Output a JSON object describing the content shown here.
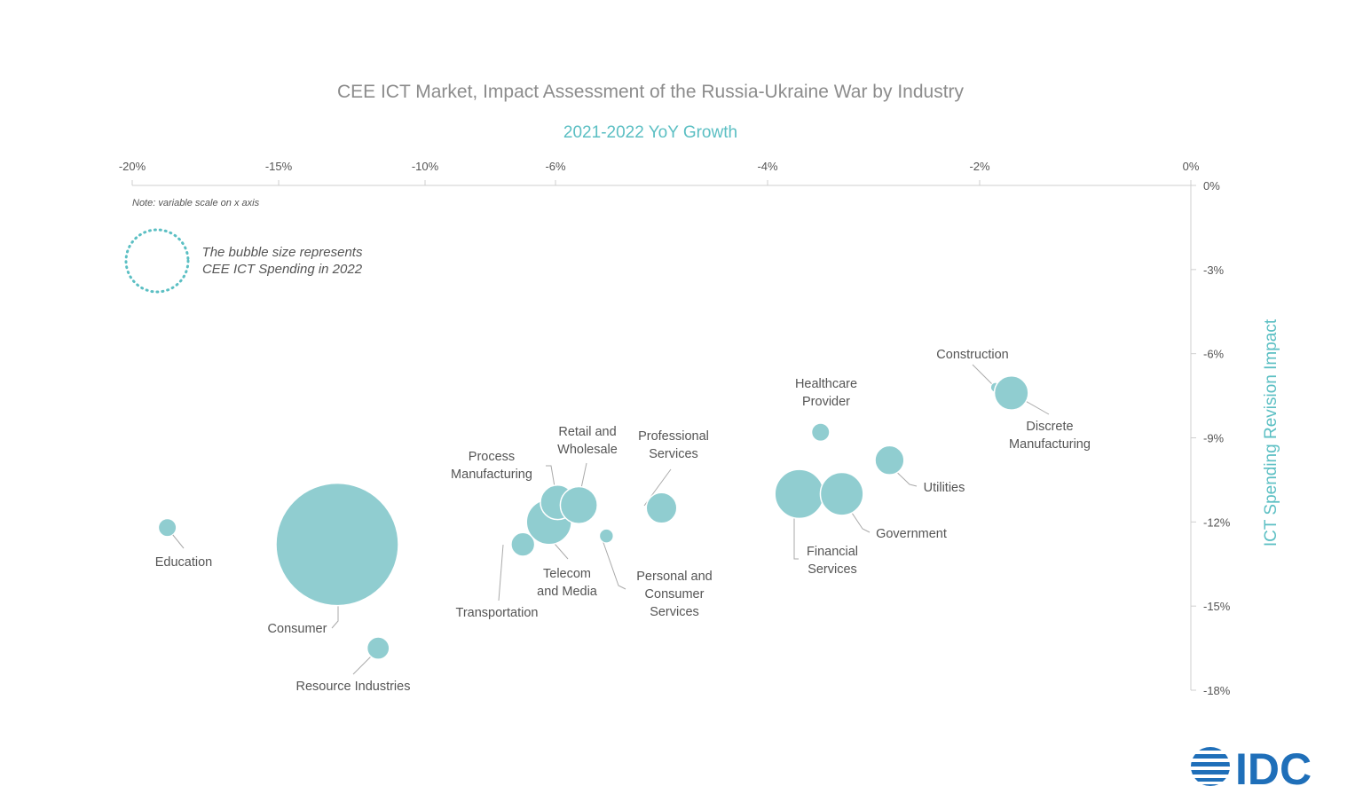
{
  "chart_data": {
    "type": "scatter",
    "title": "CEE ICT Market, Impact Assessment of the Russia-Ukraine War by Industry",
    "subtitle": "2021-2022 YoY Growth",
    "ylabel": "ICT Spending Revision Impact",
    "note": "Note: variable scale on x axis",
    "legend": {
      "line1": "The bubble size represents",
      "line2": "CEE ICT Spending in 2022"
    },
    "x_ticks": [
      "-20%",
      "-15%",
      "-10%",
      "-6%",
      "-4%",
      "-2%",
      "0%"
    ],
    "y_ticks": [
      "0%",
      "-3%",
      "-6%",
      "-9%",
      "-12%",
      "-15%",
      "-18%"
    ],
    "ylim": [
      -18,
      0
    ],
    "points": [
      {
        "name": "Education",
        "label_lines": [
          "Education"
        ],
        "x": -18.8,
        "y": -12.2,
        "size": 1
      },
      {
        "name": "Consumer",
        "label_lines": [
          "Consumer"
        ],
        "x": -13.0,
        "y": -12.8,
        "size": 48
      },
      {
        "name": "Resource Industries",
        "label_lines": [
          "Resource Industries"
        ],
        "x": -11.6,
        "y": -16.5,
        "size": 1.6
      },
      {
        "name": "Transportation",
        "label_lines": [
          "Transportation"
        ],
        "x": -7.0,
        "y": -12.8,
        "size": 1.8
      },
      {
        "name": "Telecom and Media",
        "label_lines": [
          "Telecom",
          "and Media"
        ],
        "x": -6.2,
        "y": -12.0,
        "size": 6.5
      },
      {
        "name": "Process Manufacturing",
        "label_lines": [
          "Process",
          "Manufacturing"
        ],
        "x": -5.98,
        "y": -11.3,
        "size": 3.8
      },
      {
        "name": "Retail and Wholesale",
        "label_lines": [
          "Retail and",
          "Wholesale"
        ],
        "x": -5.78,
        "y": -11.4,
        "size": 4.4
      },
      {
        "name": "Personal and Consumer Services",
        "label_lines": [
          "Personal and",
          "Consumer",
          "Services"
        ],
        "x": -5.52,
        "y": -12.5,
        "size": 0.6
      },
      {
        "name": "Professional Services",
        "label_lines": [
          "Professional",
          "Services"
        ],
        "x": -5.0,
        "y": -11.5,
        "size": 3.0
      },
      {
        "name": "Financial Services",
        "label_lines": [
          "Financial",
          "Services"
        ],
        "x": -3.7,
        "y": -11.0,
        "size": 7.7
      },
      {
        "name": "Healthcare Provider",
        "label_lines": [
          "Healthcare",
          "Provider"
        ],
        "x": -3.5,
        "y": -8.8,
        "size": 1.0
      },
      {
        "name": "Government",
        "label_lines": [
          "Government"
        ],
        "x": -3.3,
        "y": -11.0,
        "size": 5.9
      },
      {
        "name": "Utilities",
        "label_lines": [
          "Utilities"
        ],
        "x": -2.85,
        "y": -9.8,
        "size": 2.7
      },
      {
        "name": "Construction",
        "label_lines": [
          "Construction"
        ],
        "x": -1.85,
        "y": -7.2,
        "size": 0.3
      },
      {
        "name": "Discrete Manufacturing",
        "label_lines": [
          "Discrete",
          "Manufacturing"
        ],
        "x": -1.7,
        "y": -7.4,
        "size": 3.7
      }
    ]
  },
  "colors": {
    "bubble": "#90cdd0",
    "accent": "#5bbfc3",
    "logo": "#1f6fb9"
  },
  "logo": {
    "text": "IDC"
  }
}
